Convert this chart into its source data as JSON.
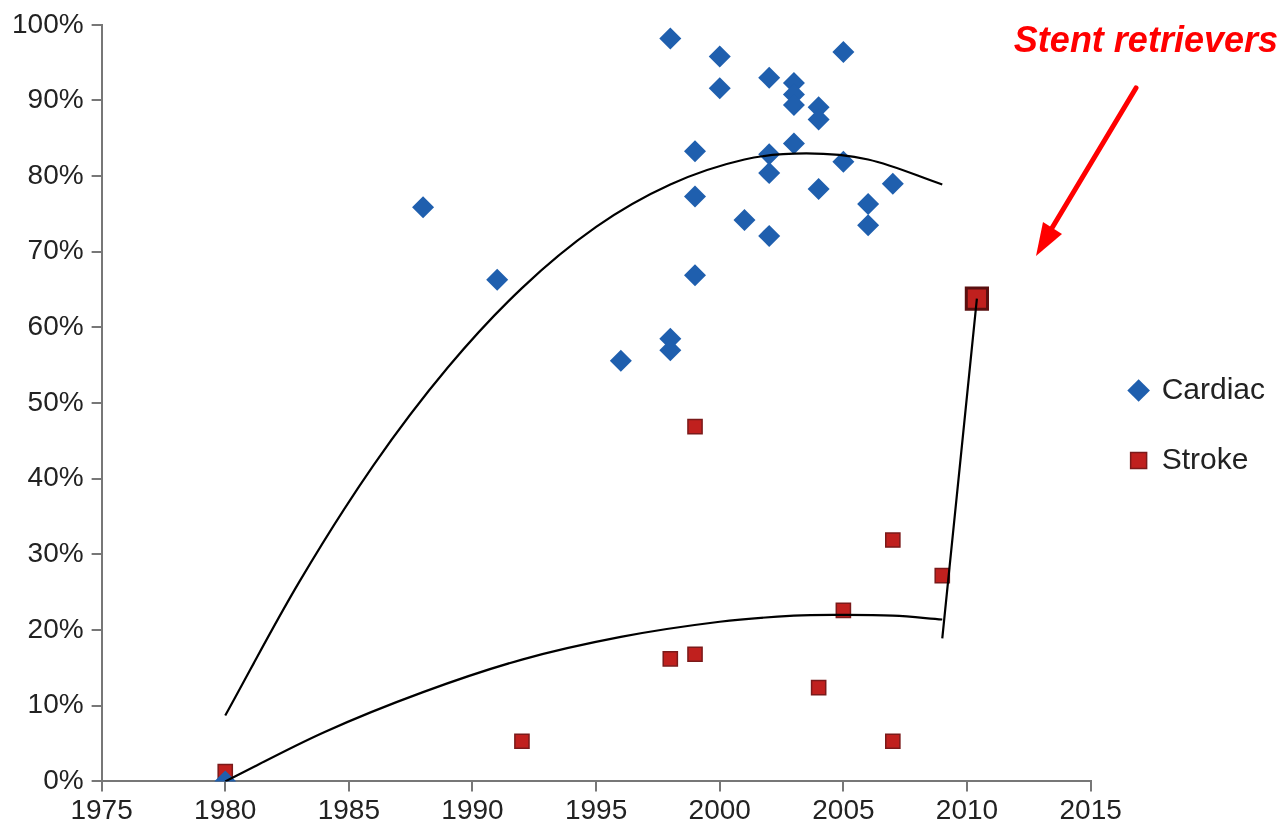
{
  "chart_data": {
    "type": "scatter",
    "xlim": [
      1975,
      2015
    ],
    "xticks": [
      1975,
      1980,
      1985,
      1990,
      1995,
      2000,
      2005,
      2010,
      2015
    ],
    "ylim": [
      0,
      100
    ],
    "yticks": [
      {
        "value": 0,
        "label": "0%"
      },
      {
        "value": 10,
        "label": "10%"
      },
      {
        "value": 20,
        "label": "20%"
      },
      {
        "value": 30,
        "label": "30%"
      },
      {
        "value": 40,
        "label": "40%"
      },
      {
        "value": 50,
        "label": "50%"
      },
      {
        "value": 60,
        "label": "60%"
      },
      {
        "value": 70,
        "label": "70%"
      },
      {
        "value": 80,
        "label": "80%"
      },
      {
        "value": 90,
        "label": "90%"
      },
      {
        "value": 100,
        "label": "100%"
      }
    ],
    "grid": false,
    "legend": "right",
    "annotations": [
      "Stent retrievers"
    ],
    "series": [
      {
        "name": "Cardiac",
        "marker": "diamond",
        "color": "#1f5fae",
        "x": [
          1980,
          1988,
          1991,
          1996,
          1998,
          1998,
          1998,
          1999,
          1999,
          1999,
          2000,
          2000,
          2001,
          2002,
          2002,
          2002,
          2002,
          2003,
          2003,
          2003,
          2003,
          2004,
          2004,
          2004,
          2005,
          2005,
          2006,
          2006,
          2007
        ],
        "values": [
          0,
          75.9,
          66.3,
          55.6,
          98.2,
          58.5,
          57.0,
          83.3,
          77.3,
          66.9,
          95.8,
          91.6,
          74.2,
          93.0,
          82.9,
          80.4,
          72.1,
          92.3,
          90.8,
          89.4,
          84.3,
          89.1,
          87.5,
          78.3,
          96.4,
          81.9,
          76.3,
          73.5,
          79.0
        ]
      },
      {
        "name": "Stroke",
        "marker": "square",
        "color": "#c0201e",
        "x": [
          1980,
          1992,
          1998,
          1999,
          1999,
          2004,
          2005,
          2007,
          2007,
          2009
        ],
        "values": [
          1.3,
          5.3,
          16.2,
          16.8,
          46.9,
          12.4,
          22.6,
          31.9,
          5.3,
          27.2
        ]
      },
      {
        "marker": "square",
        "color": "#c0201e",
        "x": [
          2010.4
        ],
        "values": [
          63.8
        ]
      },
      {
        "type": "line",
        "marker": "none",
        "color": "#000000",
        "x": [
          1980,
          1983,
          1986,
          1989,
          1992,
          1995,
          1998,
          2001,
          2003.5,
          2006,
          2009
        ],
        "values": [
          8.7,
          26.4,
          41.8,
          54.7,
          65.2,
          73.3,
          78.9,
          82.2,
          83.0,
          82.2,
          78.9
        ]
      },
      {
        "type": "line",
        "marker": "none",
        "color": "#000000",
        "x": [
          1980,
          1984,
          1988,
          1992,
          1996,
          2000,
          2003,
          2005,
          2007,
          2009
        ],
        "values": [
          0,
          6.5,
          11.8,
          16.1,
          19.1,
          21.1,
          21.9,
          22.0,
          21.9,
          21.4
        ]
      },
      {
        "type": "line",
        "marker": "none",
        "color": "#000000",
        "x": [
          2009,
          2010.4
        ],
        "values": [
          18.9,
          63.8
        ]
      }
    ]
  }
}
